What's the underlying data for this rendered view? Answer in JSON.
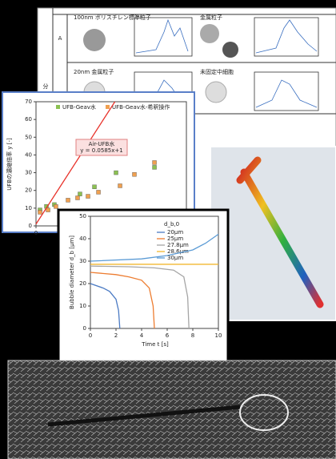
{
  "table_panel": {
    "row_label": "A",
    "side_label": "分",
    "cells": [
      "100nm ポリスチレン標準粒子",
      "金属粒子",
      "20nm 金属粒子",
      "未固定中細胞"
    ]
  },
  "chart_data": [
    {
      "type": "scatter",
      "y_label": "UFBの濃縮倍率 y [-]",
      "annotation": [
        "Air-UFB水",
        "y = 0.0585x+1"
      ],
      "xlim": [
        0,
        2250
      ],
      "xticks": [
        0
      ],
      "ylim": [
        0,
        70
      ],
      "yticks": [
        0,
        10,
        20,
        30,
        40,
        50,
        60,
        70
      ],
      "series": [
        {
          "name": "UFB-Geav水",
          "color": "#8cc152",
          "style": "markers",
          "x": [
            60,
            156,
            275,
            658,
            874,
            1197,
            1772
          ],
          "values": [
            9,
            11,
            12,
            18,
            22,
            30,
            33
          ]
        },
        {
          "name": "UFB-Geav水-希釈操作",
          "color": "#f0a050",
          "style": "markers",
          "x": [
            60,
            180,
            299,
            479,
            622,
            778,
            934,
            1257,
            1472,
            1772
          ],
          "values": [
            7.7,
            9,
            10.9,
            14.5,
            15.8,
            16.7,
            19,
            22.6,
            29,
            35.7
          ]
        },
        {
          "name": null,
          "color": "#e8322a",
          "style": "line",
          "x": [
            0,
            1180
          ],
          "values": [
            1,
            70
          ]
        }
      ]
    },
    {
      "type": "line",
      "x_label": "Time t [s]",
      "y_label": "Bubble diameter d_b [μm]",
      "legend_title": "d_b,0",
      "xlim": [
        0,
        10
      ],
      "xticks": [
        0,
        2,
        4,
        6,
        8,
        10
      ],
      "ylim": [
        0,
        50
      ],
      "yticks": [
        0,
        10,
        20,
        30,
        40,
        50
      ],
      "series": [
        {
          "name": "20μm",
          "color": "#4c7bc4",
          "x": [
            0,
            1,
            1.5,
            2,
            2.2,
            2.3
          ],
          "values": [
            20,
            18,
            16.5,
            13,
            8,
            0
          ]
        },
        {
          "name": "25μm",
          "color": "#ed7d31",
          "x": [
            0,
            2,
            3,
            4,
            4.6,
            4.9,
            5
          ],
          "values": [
            25,
            24,
            23,
            21.5,
            18,
            10,
            0
          ]
        },
        {
          "name": "27.8μm",
          "color": "#a5a5a5",
          "x": [
            0,
            3,
            5,
            6.5,
            7.3,
            7.6,
            7.7
          ],
          "values": [
            27.8,
            27.5,
            27,
            26,
            23,
            14,
            0
          ]
        },
        {
          "name": "28.6μm",
          "color": "#f2b830",
          "x": [
            0,
            10
          ],
          "values": [
            28.6,
            28.6
          ]
        },
        {
          "name": "30μm",
          "color": "#5b9bd5",
          "x": [
            0,
            4,
            6,
            8,
            9,
            10
          ],
          "values": [
            30,
            31,
            32.5,
            35,
            38,
            42
          ]
        }
      ]
    }
  ]
}
